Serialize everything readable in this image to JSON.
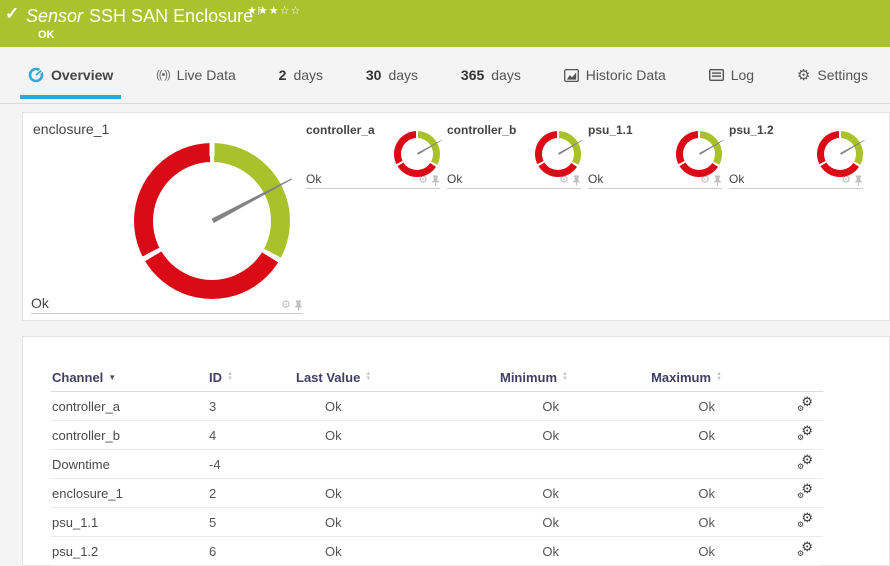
{
  "header": {
    "status_icon": "✓",
    "kind_label": "Sensor",
    "title": "SSH SAN Enclosure",
    "flag_icon": "⚐",
    "rating_stars": "★★★☆☆",
    "status": "OK"
  },
  "tabs": [
    {
      "label": "Overview",
      "active": true
    },
    {
      "label": "Live Data"
    },
    {
      "num": "2",
      "label": "days"
    },
    {
      "num": "30",
      "label": "days"
    },
    {
      "num": "365",
      "label": "days"
    },
    {
      "label": "Historic Data"
    },
    {
      "label": "Log"
    },
    {
      "label": "Settings"
    }
  ],
  "icons": {
    "gear": "⚙",
    "live": "((•))",
    "sort_up": "▲",
    "sort_down": "▼",
    "sort_desc": "▼"
  },
  "colors": {
    "header_green": "#aac22e",
    "gauge_green": "#a9c22b",
    "gauge_red": "#da0a17",
    "accent_blue": "#2ea9d6",
    "needle_gray": "#838383"
  },
  "chart_data": [
    {
      "type": "gauge",
      "name": "enclosure_1",
      "value": "Ok",
      "segments": [
        {
          "start": 2,
          "end": 118,
          "color": "#a9c22b"
        },
        {
          "start": 122,
          "end": 239,
          "color": "#da0a17"
        },
        {
          "start": 243,
          "end": 358,
          "color": "#da0a17"
        }
      ],
      "needle_angle_deg": 62
    },
    {
      "type": "gauge",
      "name": "controller_a",
      "value": "Ok",
      "segments": [
        {
          "start": 3,
          "end": 118,
          "color": "#a9c22b"
        },
        {
          "start": 124,
          "end": 238,
          "color": "#da0a17"
        },
        {
          "start": 244,
          "end": 357,
          "color": "#da0a17"
        }
      ],
      "needle_angle_deg": 60
    },
    {
      "type": "gauge",
      "name": "controller_b",
      "value": "Ok",
      "segments": [
        {
          "start": 3,
          "end": 118,
          "color": "#a9c22b"
        },
        {
          "start": 124,
          "end": 238,
          "color": "#da0a17"
        },
        {
          "start": 244,
          "end": 357,
          "color": "#da0a17"
        }
      ],
      "needle_angle_deg": 60
    },
    {
      "type": "gauge",
      "name": "psu_1.1",
      "value": "Ok",
      "segments": [
        {
          "start": 3,
          "end": 118,
          "color": "#a9c22b"
        },
        {
          "start": 124,
          "end": 238,
          "color": "#da0a17"
        },
        {
          "start": 244,
          "end": 357,
          "color": "#da0a17"
        }
      ],
      "needle_angle_deg": 60
    },
    {
      "type": "gauge",
      "name": "psu_1.2",
      "value": "Ok",
      "segments": [
        {
          "start": 3,
          "end": 118,
          "color": "#a9c22b"
        },
        {
          "start": 124,
          "end": 238,
          "color": "#da0a17"
        },
        {
          "start": 244,
          "end": 357,
          "color": "#da0a17"
        }
      ],
      "needle_angle_deg": 60
    }
  ],
  "table": {
    "headers": {
      "channel": "Channel",
      "id": "ID",
      "last_value": "Last Value",
      "minimum": "Minimum",
      "maximum": "Maximum"
    },
    "rows": [
      {
        "channel": "controller_a",
        "id": "3",
        "last": "Ok",
        "min": "Ok",
        "max": "Ok"
      },
      {
        "channel": "controller_b",
        "id": "4",
        "last": "Ok",
        "min": "Ok",
        "max": "Ok"
      },
      {
        "channel": "Downtime",
        "id": "-4",
        "last": "",
        "min": "",
        "max": ""
      },
      {
        "channel": "enclosure_1",
        "id": "2",
        "last": "Ok",
        "min": "Ok",
        "max": "Ok"
      },
      {
        "channel": "psu_1.1",
        "id": "5",
        "last": "Ok",
        "min": "Ok",
        "max": "Ok"
      },
      {
        "channel": "psu_1.2",
        "id": "6",
        "last": "Ok",
        "min": "Ok",
        "max": "Ok"
      }
    ]
  }
}
